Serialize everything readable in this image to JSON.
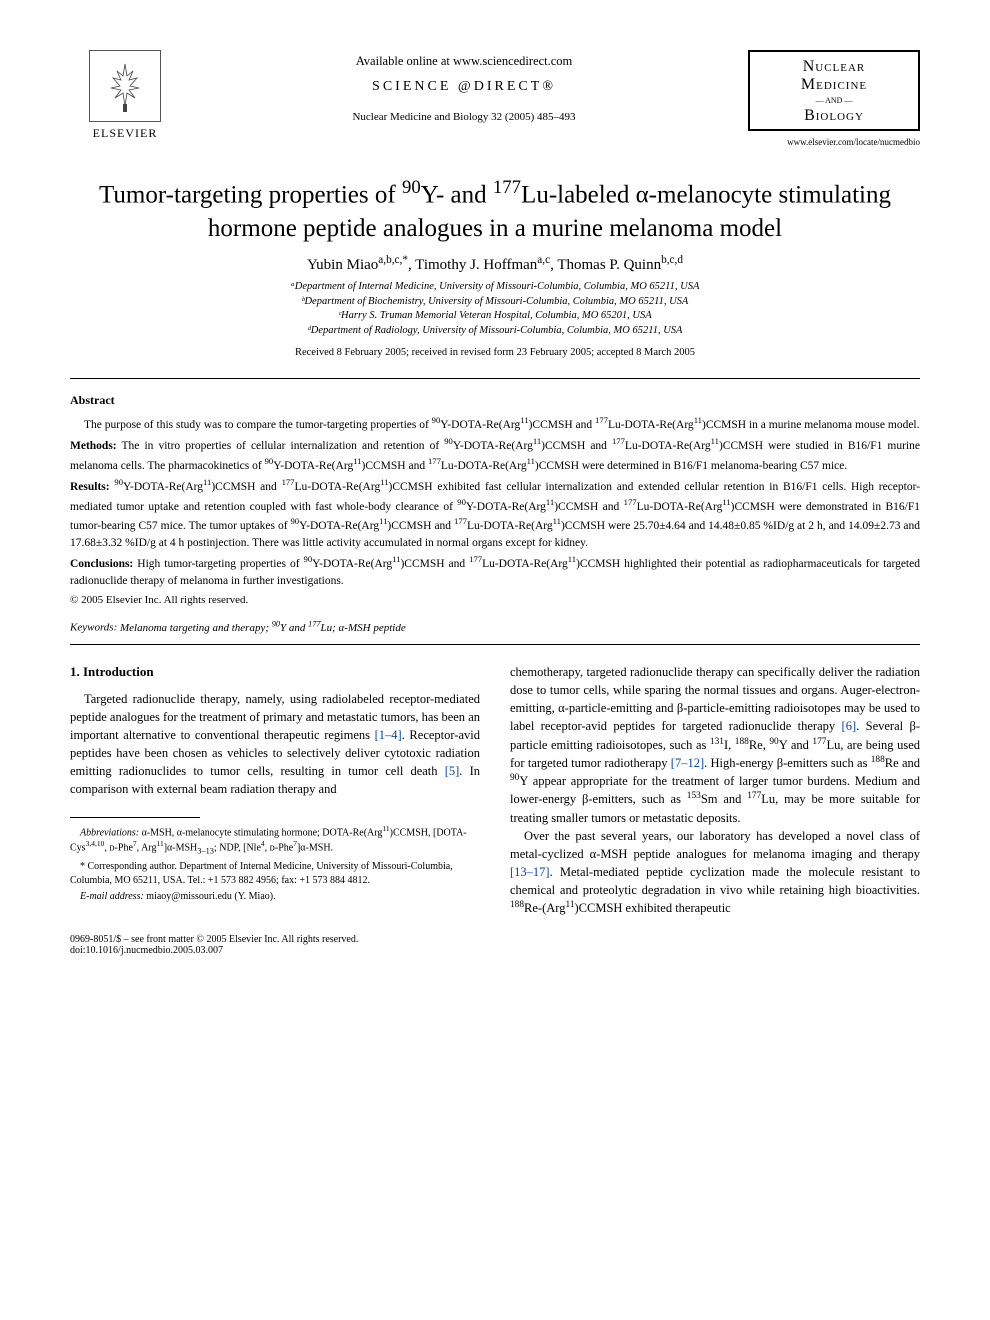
{
  "header": {
    "available_online": "Available online at www.sciencedirect.com",
    "science_direct": "SCIENCE @DIRECT®",
    "journal_citation": "Nuclear Medicine and Biology 32 (2005) 485–493",
    "elsevier_label": "ELSEVIER",
    "journal_box": {
      "line1": "Nuclear",
      "line2": "Medicine",
      "and": "— AND —",
      "line3": "Biology",
      "url": "www.elsevier.com/locate/nucmedbio"
    }
  },
  "title_html": "Tumor-targeting properties of <sup>90</sup>Y- and <sup>177</sup>Lu-labeled α-melanocyte stimulating hormone peptide analogues in a murine melanoma model",
  "authors_html": "Yubin Miao<sup>a,b,c,*</sup>, Timothy J. Hoffman<sup>a,c</sup>, Thomas P. Quinn<sup>b,c,d</sup>",
  "affiliations": [
    "ᵃDepartment of Internal Medicine, University of Missouri-Columbia, Columbia, MO 65211, USA",
    "ᵇDepartment of Biochemistry, University of Missouri-Columbia, Columbia, MO 65211, USA",
    "ᶜHarry S. Truman Memorial Veteran Hospital, Columbia, MO 65201, USA",
    "ᵈDepartment of Radiology, University of Missouri-Columbia, Columbia, MO 65211, USA"
  ],
  "dates": "Received 8 February 2005; received in revised form 23 February 2005; accepted 8 March 2005",
  "abstract": {
    "heading": "Abstract",
    "p1_html": "The purpose of this study was to compare the tumor-targeting properties of <sup>90</sup>Y-DOTA-Re(Arg<sup>11</sup>)CCMSH and <sup>177</sup>Lu-DOTA-Re(Arg<sup>11</sup>)CCMSH in a murine melanoma mouse model.",
    "p2_html": "<b>Methods:</b> The in vitro properties of cellular internalization and retention of <sup>90</sup>Y-DOTA-Re(Arg<sup>11</sup>)CCMSH and <sup>177</sup>Lu-DOTA-Re(Arg<sup>11</sup>)CCMSH were studied in B16/F1 murine melanoma cells. The pharmacokinetics of <sup>90</sup>Y-DOTA-Re(Arg<sup>11</sup>)CCMSH and <sup>177</sup>Lu-DOTA-Re(Arg<sup>11</sup>)CCMSH were determined in B16/F1 melanoma-bearing C57 mice.",
    "p3_html": "<b>Results:</b> <sup>90</sup>Y-DOTA-Re(Arg<sup>11</sup>)CCMSH and <sup>177</sup>Lu-DOTA-Re(Arg<sup>11</sup>)CCMSH exhibited fast cellular internalization and extended cellular retention in B16/F1 cells. High receptor-mediated tumor uptake and retention coupled with fast whole-body clearance of <sup>90</sup>Y-DOTA-Re(Arg<sup>11</sup>)CCMSH and <sup>177</sup>Lu-DOTA-Re(Arg<sup>11</sup>)CCMSH were demonstrated in B16/F1 tumor-bearing C57 mice. The tumor uptakes of <sup>90</sup>Y-DOTA-Re(Arg<sup>11</sup>)CCMSH and <sup>177</sup>Lu-DOTA-Re(Arg<sup>11</sup>)CCMSH were 25.70±4.64 and 14.48±0.85 %ID/g at 2 h, and 14.09±2.73 and 17.68±3.32 %ID/g at 4 h postinjection. There was little activity accumulated in normal organs except for kidney.",
    "p4_html": "<b>Conclusions:</b> High tumor-targeting properties of <sup>90</sup>Y-DOTA-Re(Arg<sup>11</sup>)CCMSH and <sup>177</sup>Lu-DOTA-Re(Arg<sup>11</sup>)CCMSH highlighted their potential as radiopharmaceuticals for targeted radionuclide therapy of melanoma in further investigations.",
    "copyright": "© 2005 Elsevier Inc. All rights reserved.",
    "keywords_label": "Keywords:",
    "keywords_html": "Melanoma targeting and therapy; <sup>90</sup>Y and <sup>177</sup>Lu; α-MSH peptide"
  },
  "intro": {
    "heading": "1. Introduction",
    "left_p1_html": "Targeted radionuclide therapy, namely, using radiolabeled receptor-mediated peptide analogues for the treatment of primary and metastatic tumors, has been an important alternative to conventional therapeutic regimens <span class=\"ref\">[1–4]</span>. Receptor-avid peptides have been chosen as vehicles to selectively deliver cytotoxic radiation emitting radionuclides to tumor cells, resulting in tumor cell death <span class=\"ref\">[5]</span>. In comparison with external beam radiation therapy and",
    "right_p1_html": "chemotherapy, targeted radionuclide therapy can specifically deliver the radiation dose to tumor cells, while sparing the normal tissues and organs. Auger-electron-emitting, α-particle-emitting and β-particle-emitting radioisotopes may be used to label receptor-avid peptides for targeted radionuclide therapy <span class=\"ref\">[6]</span>. Several β-particle emitting radioisotopes, such as <sup>131</sup>I, <sup>188</sup>Re, <sup>90</sup>Y and <sup>177</sup>Lu, are being used for targeted tumor radiotherapy <span class=\"ref\">[7–12]</span>. High-energy β-emitters such as <sup>188</sup>Re and <sup>90</sup>Y appear appropriate for the treatment of larger tumor burdens. Medium and lower-energy β-emitters, such as <sup>153</sup>Sm and <sup>177</sup>Lu, may be more suitable for treating smaller tumors or metastatic deposits.",
    "right_p2_html": "Over the past several years, our laboratory has developed a novel class of metal-cyclized α-MSH peptide analogues for melanoma imaging and therapy <span class=\"ref\">[13–17]</span>. Metal-mediated peptide cyclization made the molecule resistant to chemical and proteolytic degradation in vivo while retaining high bioactivities. <sup>188</sup>Re-(Arg<sup>11</sup>)CCMSH exhibited therapeutic"
  },
  "footnotes": {
    "abbrev_html": "<i>Abbreviations:</i> α-MSH, α-melanocyte stimulating hormone; DOTA-Re(Arg<sup>11</sup>)CCMSH, [DOTA-Cys<sup>3,4,10</sup>, ᴅ-Phe<sup>7</sup>, Arg<sup>11</sup>]α-MSH<sub>3–13</sub>; NDP, [Nle<sup>4</sup>, ᴅ-Phe<sup>7</sup>]α-MSH.",
    "corresp": "* Corresponding author. Department of Internal Medicine, University of Missouri-Columbia, Columbia, MO 65211, USA. Tel.: +1 573 882 4956; fax: +1 573 884 4812.",
    "email_html": "<i>E-mail address:</i> miaoy@missouri.edu (Y. Miao)."
  },
  "footer": {
    "line1": "0969-8051/$ – see front matter © 2005 Elsevier Inc. All rights reserved.",
    "line2": "doi:10.1016/j.nucmedbio.2005.03.007"
  },
  "colors": {
    "text": "#000000",
    "link": "#0645ad",
    "background": "#ffffff"
  }
}
